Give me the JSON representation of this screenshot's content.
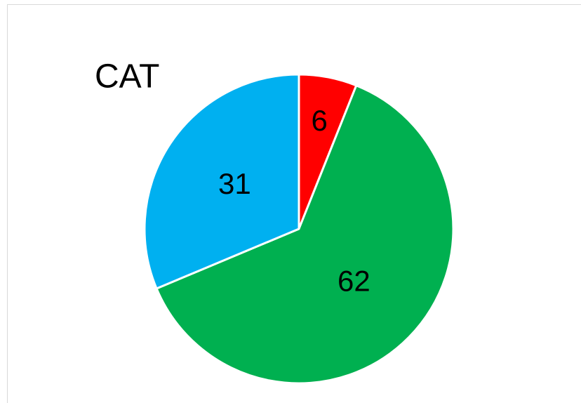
{
  "chart_data": {
    "type": "pie",
    "title": "CAT",
    "values": [
      6,
      62,
      31
    ],
    "colors": [
      "#ff0000",
      "#00b050",
      "#00b0f0"
    ],
    "start_angle": 0,
    "direction": "clockwise"
  }
}
